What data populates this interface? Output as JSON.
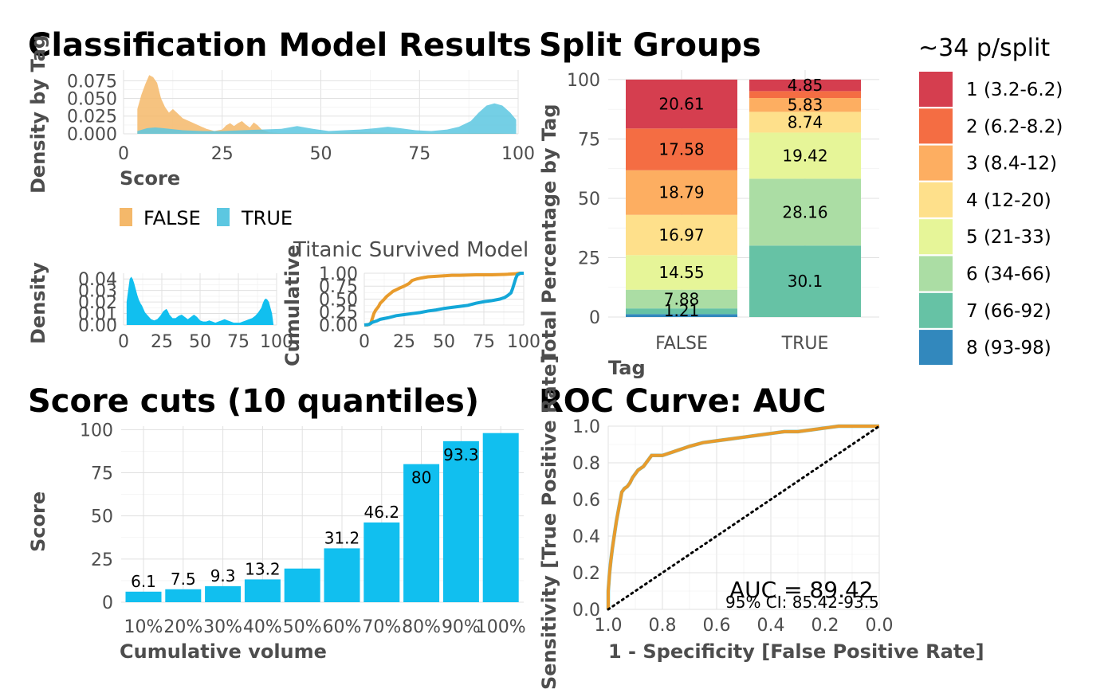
{
  "colors": {
    "false_density": "#f4b86a",
    "true_density": "#5cc7e1",
    "mid_density": "#5fa9a0",
    "cyan": "#11bfef",
    "orange": "#e89b2c",
    "roc_blue": "#55c3e1",
    "splits": [
      "#d53e4f",
      "#f46d43",
      "#fdae61",
      "#fee08b",
      "#e6f598",
      "#abdda4",
      "#66c2a5",
      "#3288bd"
    ]
  },
  "titles": {
    "main": "Classification Model Results",
    "split_groups": "Split Groups",
    "score_cuts": "Score cuts (10 quantiles)",
    "roc": "ROC Curve: AUC"
  },
  "legend_tag": {
    "items": [
      "FALSE",
      "TRUE"
    ]
  },
  "legend_splits": {
    "title": "~34 p/split",
    "items": [
      "1 (3.2-6.2)",
      "2 (6.2-8.2)",
      "3 (8.4-12)",
      "4 (12-20)",
      "5 (21-33)",
      "6 (34-66)",
      "7 (66-92)",
      "8 (93-98)"
    ]
  },
  "roc_annotation": {
    "auc": "AUC = 89.42",
    "ci": "95% CI: 85.42-93.5"
  },
  "chart_data": [
    {
      "id": "density-by-tag",
      "type": "area",
      "title": "",
      "xlabel": "Score",
      "ylabel": "Density by Tag",
      "xlim": [
        0,
        100
      ],
      "ylim": [
        0,
        0.09
      ],
      "x_ticks": [
        "0",
        "25",
        "50",
        "75",
        "100"
      ],
      "y_ticks": [
        "0.000",
        "0.025",
        "0.050",
        "0.075"
      ],
      "series": [
        {
          "name": "FALSE",
          "x": [
            3.5,
            4.5,
            5.5,
            6.5,
            7.5,
            8.5,
            9.5,
            10.5,
            11.5,
            12.5,
            13.5,
            15,
            17,
            19,
            21,
            23,
            25,
            26,
            27,
            28,
            29,
            30,
            31,
            32,
            33,
            34,
            35,
            37,
            40,
            45,
            50,
            60,
            70,
            80,
            90,
            95,
            100
          ],
          "y": [
            0.035,
            0.055,
            0.07,
            0.083,
            0.08,
            0.072,
            0.05,
            0.038,
            0.03,
            0.035,
            0.03,
            0.022,
            0.017,
            0.012,
            0.007,
            0.004,
            0.006,
            0.012,
            0.015,
            0.011,
            0.015,
            0.018,
            0.013,
            0.009,
            0.016,
            0.012,
            0.006,
            0.002,
            0.001,
            0.001,
            0.001,
            0.002,
            0.001,
            0.001,
            0.001,
            0.001,
            0.0
          ]
        },
        {
          "name": "TRUE",
          "x": [
            3.5,
            6,
            8,
            10,
            15,
            20,
            25,
            30,
            35,
            40,
            44,
            48,
            52,
            56,
            60,
            64,
            67,
            70,
            74,
            78,
            82,
            85,
            88,
            90,
            92,
            94,
            96,
            98,
            99.5
          ],
          "y": [
            0.004,
            0.008,
            0.009,
            0.008,
            0.005,
            0.004,
            0.004,
            0.005,
            0.006,
            0.007,
            0.011,
            0.007,
            0.004,
            0.005,
            0.006,
            0.008,
            0.01,
            0.008,
            0.005,
            0.004,
            0.006,
            0.01,
            0.018,
            0.03,
            0.04,
            0.043,
            0.04,
            0.03,
            0.02
          ]
        }
      ]
    },
    {
      "id": "density-overall",
      "type": "area",
      "title": "",
      "xlabel": "",
      "ylabel": "Density",
      "xlim": [
        0,
        100
      ],
      "ylim": [
        0,
        0.045
      ],
      "x_ticks": [
        "0",
        "25",
        "50",
        "75",
        "100"
      ],
      "y_ticks": [
        "0.00",
        "0.01",
        "0.02",
        "0.03",
        "0.04"
      ],
      "series": [
        {
          "name": "",
          "x": [
            2,
            3,
            4,
            5,
            6,
            7,
            8,
            9,
            10,
            11,
            12,
            13,
            14,
            16,
            18,
            20,
            22,
            24,
            26,
            28,
            29,
            30,
            32,
            34,
            36,
            38,
            40,
            42,
            44,
            46,
            48,
            50,
            52,
            54,
            56,
            58,
            60,
            62,
            64,
            66,
            68,
            70,
            72,
            74,
            76,
            78,
            80,
            82,
            84,
            86,
            88,
            90,
            91,
            92,
            93,
            94,
            95,
            96,
            97,
            98
          ],
          "y": [
            0.02,
            0.03,
            0.04,
            0.042,
            0.04,
            0.036,
            0.031,
            0.026,
            0.022,
            0.019,
            0.017,
            0.014,
            0.011,
            0.008,
            0.005,
            0.004,
            0.005,
            0.008,
            0.012,
            0.014,
            0.012,
            0.009,
            0.006,
            0.006,
            0.008,
            0.009,
            0.007,
            0.005,
            0.007,
            0.009,
            0.007,
            0.004,
            0.003,
            0.003,
            0.004,
            0.003,
            0.002,
            0.003,
            0.004,
            0.005,
            0.004,
            0.003,
            0.002,
            0.002,
            0.002,
            0.003,
            0.004,
            0.005,
            0.006,
            0.008,
            0.011,
            0.015,
            0.019,
            0.022,
            0.023,
            0.022,
            0.02,
            0.015,
            0.01,
            0.0
          ]
        }
      ]
    },
    {
      "id": "cumulative",
      "type": "line",
      "title": "Titanic Survived Model",
      "xlabel": "",
      "ylabel": "Cumulative",
      "xlim": [
        0,
        100
      ],
      "ylim": [
        0,
        1
      ],
      "x_ticks": [
        "0",
        "25",
        "50",
        "75",
        "100"
      ],
      "y_ticks": [
        "0.00",
        "0.25",
        "0.50",
        "0.75",
        "1.00"
      ],
      "series": [
        {
          "name": "FALSE",
          "x": [
            0,
            2,
            4,
            5,
            6,
            7,
            8,
            9,
            10,
            12,
            14,
            16,
            18,
            20,
            22,
            25,
            28,
            30,
            33,
            36,
            40,
            45,
            50,
            55,
            60,
            70,
            80,
            90,
            95,
            97,
            100
          ],
          "y": [
            0.0,
            0.0,
            0.03,
            0.12,
            0.22,
            0.28,
            0.32,
            0.36,
            0.42,
            0.48,
            0.55,
            0.6,
            0.65,
            0.68,
            0.71,
            0.75,
            0.8,
            0.86,
            0.89,
            0.91,
            0.93,
            0.94,
            0.95,
            0.96,
            0.96,
            0.97,
            0.97,
            0.98,
            0.99,
            1.0,
            1.0
          ]
        },
        {
          "name": "TRUE",
          "x": [
            0,
            3,
            5,
            8,
            10,
            15,
            20,
            25,
            30,
            35,
            40,
            45,
            50,
            55,
            60,
            65,
            70,
            75,
            80,
            85,
            88,
            90,
            92,
            93,
            94,
            95,
            96,
            98,
            100
          ],
          "y": [
            0.0,
            0.01,
            0.05,
            0.08,
            0.11,
            0.14,
            0.18,
            0.2,
            0.22,
            0.24,
            0.27,
            0.29,
            0.32,
            0.34,
            0.36,
            0.38,
            0.42,
            0.45,
            0.47,
            0.5,
            0.53,
            0.57,
            0.62,
            0.7,
            0.8,
            0.9,
            0.97,
            1.0,
            1.0
          ]
        }
      ]
    },
    {
      "id": "split-groups",
      "type": "bar",
      "title": "Split Groups",
      "xlabel": "Tag",
      "ylabel": "Total Percentage by Tag",
      "categories": [
        "FALSE",
        "TRUE"
      ],
      "ylim": [
        0,
        100
      ],
      "y_ticks": [
        "0",
        "25",
        "50",
        "75",
        "100"
      ],
      "legend": "right",
      "series": [
        {
          "name": "1 (3.2-6.2)",
          "values": [
            20.61,
            4.85
          ]
        },
        {
          "name": "2 (6.2-8.2)",
          "values": [
            17.58,
            2.9
          ]
        },
        {
          "name": "3 (8.4-12)",
          "values": [
            18.79,
            5.83
          ]
        },
        {
          "name": "4 (12-20)",
          "values": [
            16.97,
            8.74
          ]
        },
        {
          "name": "5 (21-33)",
          "values": [
            14.55,
            19.42
          ]
        },
        {
          "name": "6 (34-66)",
          "values": [
            7.88,
            28.16
          ]
        },
        {
          "name": "7 (66-92)",
          "values": [
            2.42,
            30.1
          ]
        },
        {
          "name": "8 (93-98)",
          "values": [
            1.21,
            0
          ]
        }
      ],
      "stack_order": "1 at top, 8 at bottom",
      "shown_labels": {
        "FALSE": [
          "20.61",
          "17.58",
          "18.79",
          "16.97",
          "14.55",
          "7.88",
          "",
          "1.21"
        ],
        "TRUE": [
          "4.85",
          "",
          "5.83",
          "8.74",
          "19.42",
          "28.16",
          "30.1",
          ""
        ]
      }
    },
    {
      "id": "score-cuts",
      "type": "bar",
      "title": "Score cuts (10 quantiles)",
      "xlabel": "Cumulative volume",
      "ylabel": "Score",
      "categories": [
        "10%",
        "20%",
        "30%",
        "40%",
        "50%",
        "60%",
        "70%",
        "80%",
        "90%",
        "100%"
      ],
      "values": [
        6.1,
        7.5,
        9.3,
        13.2,
        19.5,
        31.2,
        46.2,
        80,
        93.3,
        98
      ],
      "value_labels": [
        "6.1",
        "7.5",
        "9.3",
        "13.2",
        "",
        "31.2",
        "46.2",
        "80",
        "93.3",
        ""
      ],
      "ylim": [
        0,
        100
      ],
      "y_ticks": [
        "0",
        "25",
        "50",
        "75",
        "100"
      ]
    },
    {
      "id": "roc-curve",
      "type": "line",
      "title": "ROC Curve: AUC",
      "xlabel": "1 - Specificity [False Positive Rate]",
      "ylabel": "Sensitivity [True Positive Rate]",
      "x_reversed": true,
      "xlim": [
        1,
        0
      ],
      "ylim": [
        0,
        1
      ],
      "x_ticks": [
        "1.0",
        "0.8",
        "0.6",
        "0.4",
        "0.2",
        "0.0"
      ],
      "y_ticks": [
        "0.0",
        "0.2",
        "0.4",
        "0.6",
        "0.8",
        "1.0"
      ],
      "series": [
        {
          "name": "ROC",
          "x": [
            1.0,
            1.0,
            0.995,
            0.99,
            0.985,
            0.98,
            0.975,
            0.97,
            0.965,
            0.96,
            0.955,
            0.95,
            0.94,
            0.93,
            0.92,
            0.91,
            0.9,
            0.89,
            0.88,
            0.87,
            0.86,
            0.85,
            0.84,
            0.82,
            0.8,
            0.78,
            0.76,
            0.74,
            0.72,
            0.7,
            0.65,
            0.6,
            0.55,
            0.5,
            0.45,
            0.4,
            0.35,
            0.3,
            0.25,
            0.2,
            0.15,
            0.1,
            0.05,
            0.0
          ],
          "y": [
            0.0,
            0.1,
            0.2,
            0.27,
            0.33,
            0.38,
            0.43,
            0.48,
            0.52,
            0.56,
            0.6,
            0.64,
            0.66,
            0.67,
            0.69,
            0.72,
            0.74,
            0.76,
            0.77,
            0.78,
            0.8,
            0.82,
            0.84,
            0.84,
            0.84,
            0.85,
            0.86,
            0.87,
            0.88,
            0.89,
            0.91,
            0.92,
            0.93,
            0.94,
            0.95,
            0.96,
            0.97,
            0.97,
            0.98,
            0.99,
            1.0,
            1.0,
            1.0,
            1.0
          ]
        },
        {
          "name": "Chance",
          "x": [
            1.0,
            0.0
          ],
          "y": [
            0.0,
            1.0
          ]
        }
      ]
    }
  ]
}
